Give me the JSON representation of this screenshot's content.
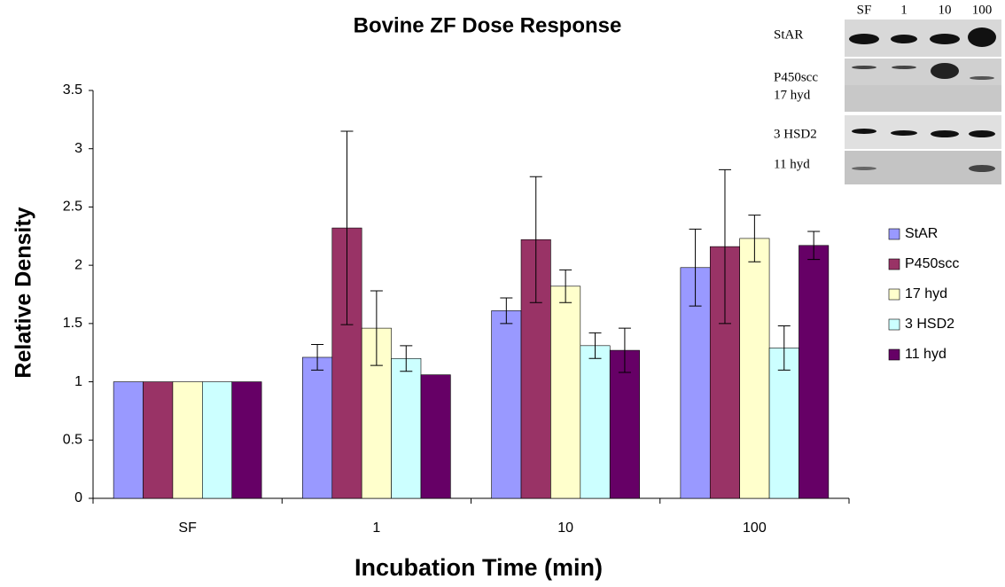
{
  "chart_data": {
    "type": "bar",
    "title": "Bovine ZF Dose Response",
    "x_label": "Incubation Time (min)",
    "y_label": "Relative Density",
    "categories": [
      "SF",
      "1",
      "10",
      "100"
    ],
    "series": [
      {
        "name": "StAR",
        "color": "#9999ff",
        "values": [
          1,
          1.21,
          1.61,
          1.98
        ],
        "errors": [
          null,
          0.11,
          0.11,
          0.33
        ]
      },
      {
        "name": "P450scc",
        "color": "#993366",
        "values": [
          1,
          2.32,
          2.22,
          2.16
        ],
        "errors": [
          null,
          0.83,
          0.54,
          0.66
        ]
      },
      {
        "name": "17 hyd",
        "color": "#ffffcc",
        "values": [
          1,
          1.46,
          1.82,
          2.23
        ],
        "errors": [
          null,
          0.32,
          0.14,
          0.2
        ]
      },
      {
        "name": "3 HSD2",
        "color": "#ccffff",
        "values": [
          1,
          1.2,
          1.31,
          1.29
        ],
        "errors": [
          null,
          0.11,
          0.11,
          0.19
        ]
      },
      {
        "name": "11 hyd",
        "color": "#660066",
        "values": [
          1,
          1.06,
          1.27,
          2.17
        ],
        "errors": [
          null,
          null,
          0.19,
          0.12
        ]
      }
    ],
    "ylim": [
      0,
      3.5
    ],
    "yticks": [
      0,
      0.5,
      1,
      1.5,
      2,
      2.5,
      3,
      3.5
    ],
    "grid": false,
    "legend": "right",
    "inset": {
      "lanes": [
        "SF",
        "1",
        "10",
        "100"
      ],
      "rows": [
        "StAR",
        "P450scc",
        "17 hyd",
        "3 HSD2",
        "11 hyd"
      ]
    }
  }
}
